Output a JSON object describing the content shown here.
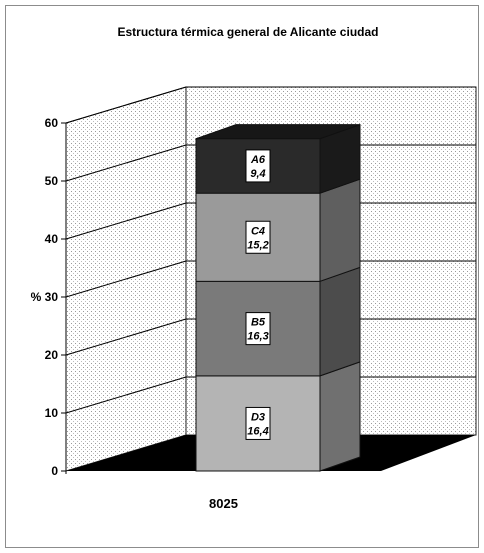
{
  "chart_data": {
    "type": "bar",
    "stacked": true,
    "three_d": true,
    "title": "Estructura térmica general de Alicante ciudad",
    "ylabel": "%",
    "xlabel": "",
    "categories": [
      "8025"
    ],
    "ylim": [
      0,
      60
    ],
    "yticks": [
      "0",
      "10",
      "20",
      "30",
      "40",
      "50",
      "60"
    ],
    "series": [
      {
        "name": "D3",
        "values": [
          16.4
        ],
        "label": "16,4",
        "color": "#b4b4b4"
      },
      {
        "name": "B5",
        "values": [
          16.3
        ],
        "label": "16,3",
        "color": "#7a7a7a"
      },
      {
        "name": "C4",
        "values": [
          15.2
        ],
        "label": "15,2",
        "color": "#9a9a9a"
      },
      {
        "name": "A6",
        "values": [
          9.4
        ],
        "label": "9,4",
        "color": "#2a2a2a"
      }
    ],
    "grid": true,
    "legend": "none"
  }
}
